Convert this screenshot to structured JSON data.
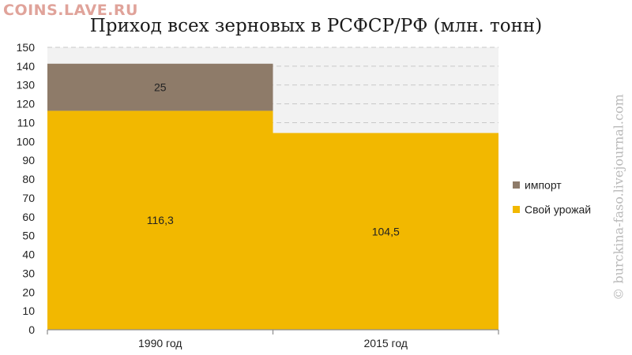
{
  "watermark_top": "COINS.LAVE.RU",
  "watermark_side": "© burckina-faso.livejournal.com",
  "chart_data": {
    "type": "bar",
    "stacked": true,
    "title": "Приход всех зерновых в РСФСР/РФ (млн. тонн)",
    "categories": [
      "1990 год",
      "2015 год"
    ],
    "series": [
      {
        "name": "Свой урожай",
        "values": [
          116.3,
          104.5
        ],
        "labels": [
          "116,3",
          "104,5"
        ],
        "color": "#f2b800"
      },
      {
        "name": "импорт",
        "values": [
          25,
          null
        ],
        "labels": [
          "25",
          ""
        ],
        "color": "#8e7b69"
      }
    ],
    "ylim": [
      0,
      150
    ],
    "yticks": [
      0,
      10,
      20,
      30,
      40,
      50,
      60,
      70,
      80,
      90,
      100,
      110,
      120,
      130,
      140,
      150
    ],
    "grid": true,
    "legend_position": "right",
    "legend_order": [
      "импорт",
      "Свой урожай"
    ]
  }
}
